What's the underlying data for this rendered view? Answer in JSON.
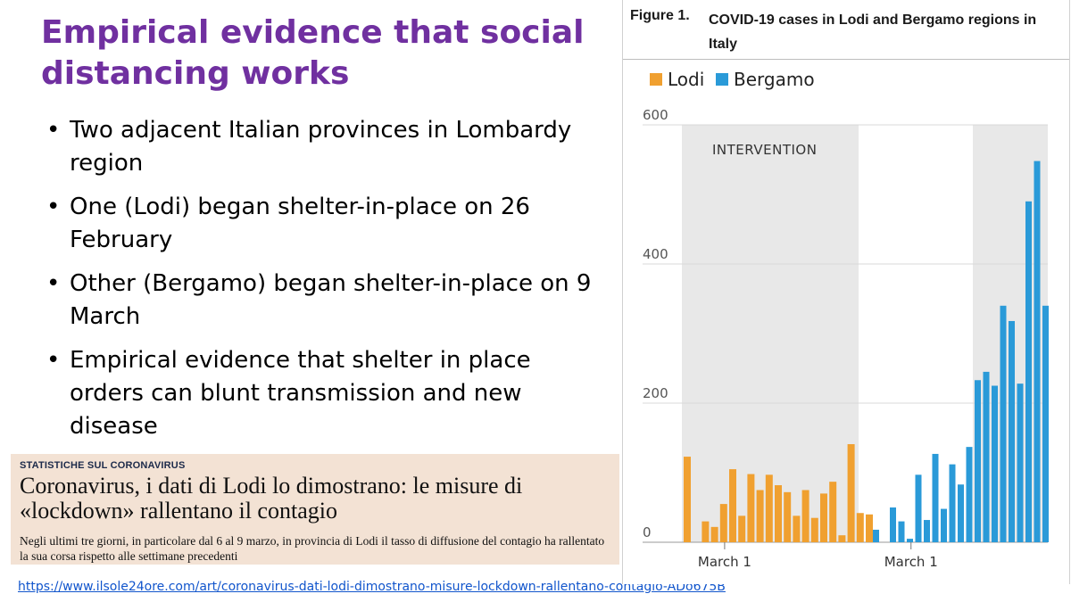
{
  "slide": {
    "title": "Empirical evidence that social distancing works",
    "bullets": [
      "Two adjacent Italian provinces in Lombardy region",
      "One (Lodi) began shelter-in-place on 26 February",
      "Other (Bergamo) began shelter-in-place on 9 March",
      "Empirical evidence that shelter in place orders can blunt transmission and new disease"
    ],
    "bullet_glyph": "•"
  },
  "news": {
    "kicker": "STATISTICHE SUL CORONAVIRUS",
    "headline": "Coronavirus, i dati di Lodi lo dimostrano: le misure di «lockdown» rallentano il contagio",
    "subtitle": "Negli ultimi tre giorni, in particolare dal 6 al 9 marzo, in provincia di Lodi il tasso di diffusione del contagio ha rallentato la sua corsa rispetto alle settimane precedenti"
  },
  "source_url": "https://www.ilsole24ore.com/art/coronavirus-dati-lodi-dimostrano-misure-lockdown-rallentano-contagio-ADo675B",
  "figure": {
    "label": "Figure 1.",
    "title": "COVID-19 cases in Lodi and Bergamo regions in Italy"
  },
  "chart_data": {
    "type": "bar",
    "title": "Figure 1. COVID-19 cases in Lodi and Bergamo regions in Italy",
    "ylim": [
      0,
      600
    ],
    "y_ticks": [
      "0",
      "200",
      "400",
      "600"
    ],
    "grid": true,
    "legend_position": "top-left",
    "annotation": "INTERVENTION",
    "series": [
      {
        "name": "Lodi",
        "color": "#f0a030",
        "x_tick_label": "March 1",
        "values": [
          123,
          0,
          30,
          22,
          55,
          105,
          38,
          98,
          75,
          97,
          82,
          72,
          38,
          75,
          35,
          70,
          87,
          10,
          141,
          42,
          40
        ]
      },
      {
        "name": "Bergamo",
        "color": "#2a9ad8",
        "x_tick_label": "March 1",
        "values": [
          18,
          0,
          50,
          30,
          5,
          97,
          32,
          127,
          48,
          112,
          83,
          137,
          233,
          245,
          225,
          340,
          318,
          228,
          490,
          548,
          340
        ]
      }
    ]
  },
  "colors": {
    "title": "#7030a0",
    "lodi": "#f0a030",
    "bergamo": "#2a9ad8",
    "intervention_band": "#e8e8e8",
    "news_background": "#f3e2d4",
    "link": "#1155cc"
  }
}
